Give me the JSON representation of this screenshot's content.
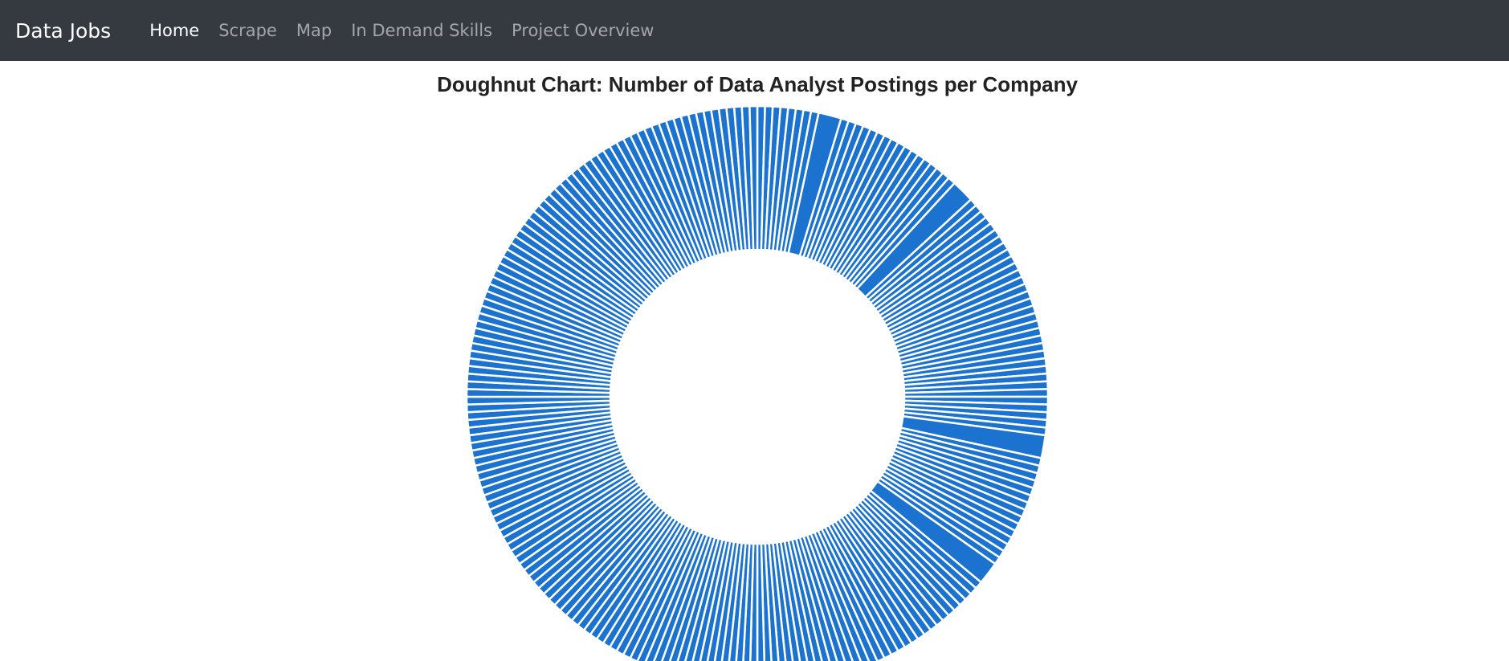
{
  "navbar": {
    "brand": "Data Jobs",
    "links": [
      {
        "label": "Home",
        "active": true
      },
      {
        "label": "Scrape",
        "active": false
      },
      {
        "label": "Map",
        "active": false
      },
      {
        "label": "In Demand Skills",
        "active": false
      },
      {
        "label": "Project Overview",
        "active": false
      }
    ]
  },
  "colors": {
    "navbar_bg": "#343a40",
    "slice_fill": "#1b73cf",
    "slice_border": "#ffffff"
  },
  "chart_data": {
    "type": "pie",
    "variant": "doughnut",
    "title": "Doughnut Chart: Number of Data Analyst Postings per Company",
    "series": [
      {
        "values": [
          1,
          1,
          1,
          1,
          1,
          1,
          1,
          1,
          3,
          1,
          1,
          1,
          1,
          1,
          1,
          1,
          1,
          1,
          1,
          1,
          1,
          1,
          1,
          1,
          1,
          1,
          3,
          1,
          1,
          1,
          1,
          1,
          1,
          1,
          1,
          1,
          1,
          1,
          1,
          1,
          1,
          1,
          1,
          1,
          1,
          1,
          1,
          1,
          1,
          1,
          1,
          1,
          1,
          1,
          1,
          1,
          1,
          1,
          1,
          1,
          3,
          1,
          1,
          1,
          1,
          1,
          1,
          1,
          1,
          1,
          1,
          1,
          1,
          1,
          1,
          1,
          3,
          1,
          1,
          1,
          1,
          1,
          1,
          1,
          1,
          1,
          1,
          1,
          1,
          1,
          1,
          1,
          1,
          1,
          1,
          1,
          1,
          1,
          1,
          1,
          1,
          1,
          1,
          1,
          1,
          1,
          1,
          1,
          1,
          1,
          1,
          1,
          1,
          1,
          1,
          1,
          1,
          1,
          1,
          1,
          1,
          1,
          1,
          1,
          1,
          1,
          1,
          1,
          1,
          1,
          1,
          1,
          1,
          1,
          1,
          1,
          1,
          1,
          1,
          1,
          1,
          1,
          1,
          1,
          1,
          1,
          1,
          1,
          1,
          1,
          1,
          1,
          1,
          1,
          1,
          1,
          1,
          1,
          1,
          1,
          1,
          1,
          1,
          1,
          1,
          1,
          1,
          1,
          1,
          1,
          1,
          1,
          1,
          1,
          1,
          1,
          1,
          1,
          1,
          1,
          1,
          1,
          1,
          1,
          1,
          1,
          1,
          1,
          1,
          1,
          1,
          1,
          1,
          1,
          1,
          1,
          1,
          1,
          1,
          1,
          1,
          1,
          1,
          1,
          1,
          1,
          1,
          1,
          1,
          1,
          1,
          1,
          1,
          1,
          1,
          1,
          1,
          1,
          1,
          1,
          1,
          1,
          1,
          1,
          1,
          1,
          1,
          1
        ]
      }
    ],
    "legend": false,
    "grid": false
  }
}
